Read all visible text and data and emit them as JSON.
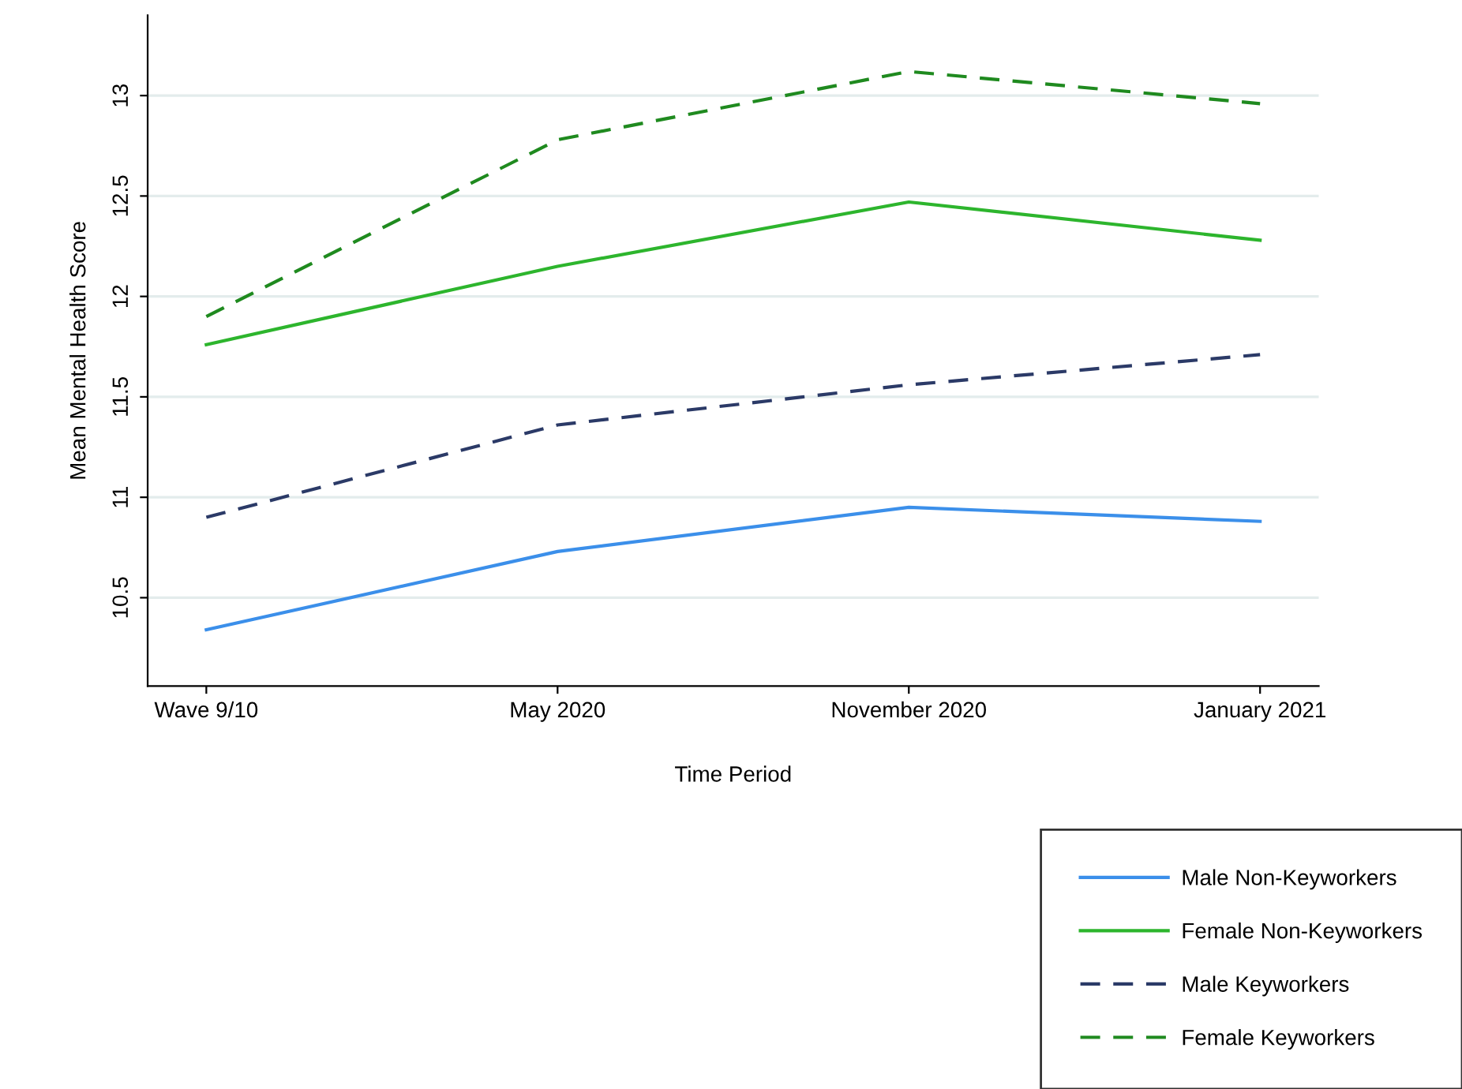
{
  "chart_data": {
    "type": "line",
    "xlabel": "Time Period",
    "ylabel": "Mean Mental Health Score",
    "categories": [
      "Wave 9/10",
      "May 2020",
      "November 2020",
      "January 2021"
    ],
    "series": [
      {
        "name": "Male Non-Keyworkers",
        "color": "#3b8fea",
        "line_style": "solid",
        "values": [
          10.34,
          10.73,
          10.95,
          10.88
        ]
      },
      {
        "name": "Female Non-Keyworkers",
        "color": "#2db52d",
        "line_style": "solid",
        "values": [
          11.76,
          12.15,
          12.47,
          12.28
        ]
      },
      {
        "name": "Male Keyworkers",
        "color": "#2b3a67",
        "line_style": "dashed",
        "values": [
          10.9,
          11.36,
          11.56,
          11.71
        ]
      },
      {
        "name": "Female Keyworkers",
        "color": "#1f8a1f",
        "line_style": "dashed",
        "values": [
          11.9,
          12.78,
          13.12,
          12.96
        ]
      }
    ],
    "ylim": [
      10.06,
      13.4
    ],
    "yticks": [
      10.5,
      11,
      11.5,
      12,
      12.5,
      13
    ],
    "grid": "y",
    "legend": "bottom right",
    "marker": "none"
  }
}
